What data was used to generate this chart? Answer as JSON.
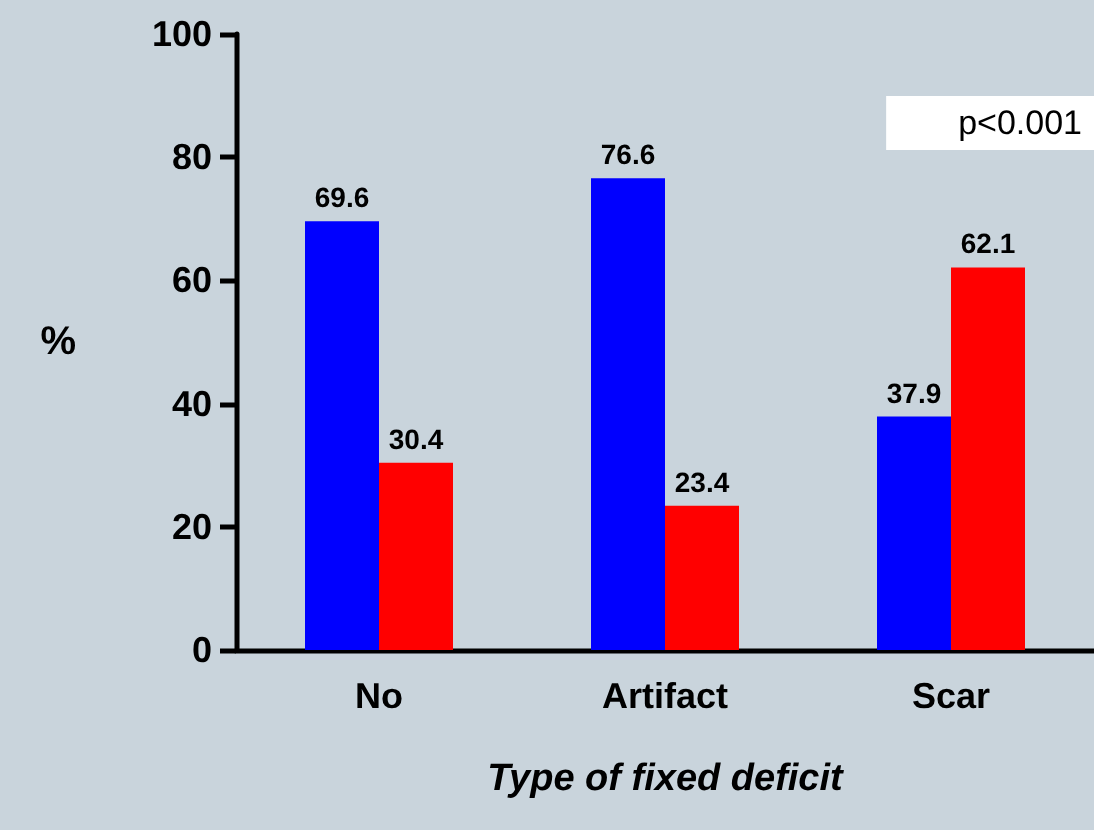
{
  "chart_data": {
    "type": "bar",
    "xlabel": "Type of fixed deficit",
    "ylabel": "%",
    "categories": [
      "No",
      "Artifact",
      "Scar"
    ],
    "series": [
      {
        "color": "#0000ff",
        "values": [
          69.6,
          76.6,
          37.9
        ]
      },
      {
        "color": "#ff0000",
        "values": [
          30.4,
          23.4,
          62.1
        ]
      }
    ],
    "ylim": [
      0,
      100
    ],
    "yticks": [
      0,
      20,
      40,
      60,
      80,
      100
    ],
    "grid": false,
    "data_labels": true,
    "annotations": [
      "p<0.001"
    ]
  }
}
